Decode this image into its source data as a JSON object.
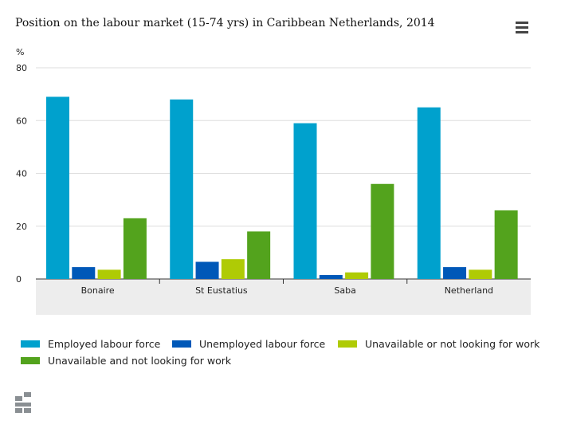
{
  "title": "Position on the labour market (15-74 yrs) in Caribbean Netherlands, 2014",
  "menu_icon": "hamburger-icon",
  "logo_icon": "cbs-logo-icon",
  "chart_data": {
    "type": "bar",
    "title": "Position on the labour market (15-74 yrs) in Caribbean Netherlands, 2014",
    "ylabel": "%",
    "xlabel": "",
    "ylim": [
      0,
      80
    ],
    "yticks": [
      0,
      20,
      40,
      60,
      80
    ],
    "categories": [
      "Bonaire",
      "St Eustatius",
      "Saba",
      "Netherland"
    ],
    "series": [
      {
        "name": "Employed labour force",
        "color": "#00a1cd",
        "values": [
          69,
          68,
          59,
          65
        ]
      },
      {
        "name": "Unemployed labour force",
        "color": "#0058b8",
        "values": [
          4.5,
          6.5,
          1.5,
          4.5
        ]
      },
      {
        "name": "Unavailable or not looking for work",
        "color": "#afcb05",
        "values": [
          3.5,
          7.5,
          2.5,
          3.5
        ]
      },
      {
        "name": "Unavailable and not looking for work",
        "color": "#53a31d",
        "values": [
          23,
          18,
          36,
          26
        ]
      }
    ],
    "grid": true,
    "legend_position": "bottom"
  }
}
